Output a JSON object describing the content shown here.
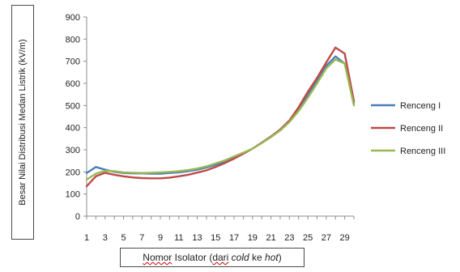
{
  "chart_data": {
    "type": "line",
    "title": "",
    "ylabel": "Besar Nilai Distribusi Medan Listrik (kV/m)",
    "xlabel": {
      "part1": "Nomor",
      "part2": " Isolator (",
      "part3": "dari",
      "part4": " ",
      "part5": "cold",
      "part6": " ke ",
      "part7": "hot",
      "part8": ")"
    },
    "ylim": [
      0,
      900
    ],
    "yticks": [
      0,
      100,
      200,
      300,
      400,
      500,
      600,
      700,
      800,
      900
    ],
    "xticks": [
      1,
      3,
      5,
      7,
      9,
      11,
      13,
      15,
      17,
      19,
      21,
      23,
      25,
      27,
      29
    ],
    "x": [
      1,
      2,
      3,
      4,
      5,
      6,
      7,
      8,
      9,
      10,
      11,
      12,
      13,
      14,
      15,
      16,
      17,
      18,
      19,
      20,
      21,
      22,
      23,
      24,
      25,
      26,
      27,
      28,
      29,
      30
    ],
    "grid": false,
    "legend_position": "right",
    "series": [
      {
        "name": "Renceng I",
        "color": "#4a7ebb",
        "values": [
          195,
          222,
          210,
          200,
          195,
          193,
          193,
          192,
          192,
          195,
          198,
          203,
          210,
          220,
          232,
          247,
          265,
          283,
          305,
          332,
          360,
          390,
          430,
          485,
          550,
          610,
          680,
          722,
          690,
          510
        ]
      },
      {
        "name": "Renceng II",
        "color": "#be4b48",
        "values": [
          135,
          180,
          196,
          187,
          180,
          175,
          172,
          171,
          171,
          174,
          180,
          187,
          197,
          207,
          222,
          240,
          260,
          282,
          305,
          332,
          360,
          392,
          432,
          492,
          562,
          625,
          695,
          762,
          735,
          520
        ]
      },
      {
        "name": "Renceng III",
        "color": "#98b954",
        "values": [
          165,
          192,
          205,
          203,
          198,
          196,
          195,
          196,
          198,
          200,
          203,
          208,
          215,
          225,
          238,
          252,
          270,
          287,
          305,
          330,
          357,
          387,
          425,
          475,
          535,
          600,
          668,
          708,
          690,
          500
        ]
      }
    ]
  }
}
